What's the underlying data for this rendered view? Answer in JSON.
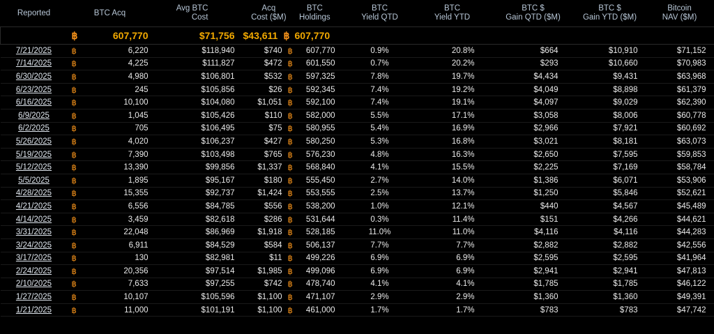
{
  "headers": {
    "reported": "Reported",
    "btc_acq": "BTC Acq",
    "avg_cost_1": "Avg BTC",
    "avg_cost_2": "Cost",
    "acq_cost_1": "Acq",
    "acq_cost_2": "Cost ($M)",
    "holdings_1": "BTC",
    "holdings_2": "Holdings",
    "yield_qtd_1": "BTC",
    "yield_qtd_2": "Yield QTD",
    "yield_ytd_1": "BTC",
    "yield_ytd_2": "Yield YTD",
    "gain_qtd_1": "BTC $",
    "gain_qtd_2": "Gain QTD ($M)",
    "gain_ytd_1": "BTC $",
    "gain_ytd_2": "Gain YTD ($M)",
    "nav_1": "Bitcoin",
    "nav_2": "NAV ($M)"
  },
  "btc_symbol": "฿",
  "summary": {
    "btc_acq": "607,770",
    "avg_cost": "$71,756",
    "acq_cost": "$43,611",
    "holdings": "607,770"
  },
  "rows": [
    {
      "date": "7/21/2025",
      "acq": "6,220",
      "avg": "$118,940",
      "cost": "$740",
      "hold": "607,770",
      "yqtd": "0.9%",
      "yytd": "20.8%",
      "gqtd": "$664",
      "gytd": "$10,910",
      "nav": "$71,152"
    },
    {
      "date": "7/14/2025",
      "acq": "4,225",
      "avg": "$111,827",
      "cost": "$472",
      "hold": "601,550",
      "yqtd": "0.7%",
      "yytd": "20.2%",
      "gqtd": "$293",
      "gytd": "$10,660",
      "nav": "$70,983"
    },
    {
      "date": "6/30/2025",
      "acq": "4,980",
      "avg": "$106,801",
      "cost": "$532",
      "hold": "597,325",
      "yqtd": "7.8%",
      "yytd": "19.7%",
      "gqtd": "$4,434",
      "gytd": "$9,431",
      "nav": "$63,968"
    },
    {
      "date": "6/23/2025",
      "acq": "245",
      "avg": "$105,856",
      "cost": "$26",
      "hold": "592,345",
      "yqtd": "7.4%",
      "yytd": "19.2%",
      "gqtd": "$4,049",
      "gytd": "$8,898",
      "nav": "$61,379"
    },
    {
      "date": "6/16/2025",
      "acq": "10,100",
      "avg": "$104,080",
      "cost": "$1,051",
      "hold": "592,100",
      "yqtd": "7.4%",
      "yytd": "19.1%",
      "gqtd": "$4,097",
      "gytd": "$9,029",
      "nav": "$62,390"
    },
    {
      "date": "6/9/2025",
      "acq": "1,045",
      "avg": "$105,426",
      "cost": "$110",
      "hold": "582,000",
      "yqtd": "5.5%",
      "yytd": "17.1%",
      "gqtd": "$3,058",
      "gytd": "$8,006",
      "nav": "$60,778"
    },
    {
      "date": "6/2/2025",
      "acq": "705",
      "avg": "$106,495",
      "cost": "$75",
      "hold": "580,955",
      "yqtd": "5.4%",
      "yytd": "16.9%",
      "gqtd": "$2,966",
      "gytd": "$7,921",
      "nav": "$60,692"
    },
    {
      "date": "5/26/2025",
      "acq": "4,020",
      "avg": "$106,237",
      "cost": "$427",
      "hold": "580,250",
      "yqtd": "5.3%",
      "yytd": "16.8%",
      "gqtd": "$3,021",
      "gytd": "$8,181",
      "nav": "$63,073"
    },
    {
      "date": "5/19/2025",
      "acq": "7,390",
      "avg": "$103,498",
      "cost": "$765",
      "hold": "576,230",
      "yqtd": "4.8%",
      "yytd": "16.3%",
      "gqtd": "$2,650",
      "gytd": "$7,595",
      "nav": "$59,853"
    },
    {
      "date": "5/12/2025",
      "acq": "13,390",
      "avg": "$99,856",
      "cost": "$1,337",
      "hold": "568,840",
      "yqtd": "4.1%",
      "yytd": "15.5%",
      "gqtd": "$2,225",
      "gytd": "$7,169",
      "nav": "$58,784"
    },
    {
      "date": "5/5/2025",
      "acq": "1,895",
      "avg": "$95,167",
      "cost": "$180",
      "hold": "555,450",
      "yqtd": "2.7%",
      "yytd": "14.0%",
      "gqtd": "$1,386",
      "gytd": "$6,071",
      "nav": "$53,906"
    },
    {
      "date": "4/28/2025",
      "acq": "15,355",
      "avg": "$92,737",
      "cost": "$1,424",
      "hold": "553,555",
      "yqtd": "2.5%",
      "yytd": "13.7%",
      "gqtd": "$1,250",
      "gytd": "$5,846",
      "nav": "$52,621"
    },
    {
      "date": "4/21/2025",
      "acq": "6,556",
      "avg": "$84,785",
      "cost": "$556",
      "hold": "538,200",
      "yqtd": "1.0%",
      "yytd": "12.1%",
      "gqtd": "$440",
      "gytd": "$4,567",
      "nav": "$45,489"
    },
    {
      "date": "4/14/2025",
      "acq": "3,459",
      "avg": "$82,618",
      "cost": "$286",
      "hold": "531,644",
      "yqtd": "0.3%",
      "yytd": "11.4%",
      "gqtd": "$151",
      "gytd": "$4,266",
      "nav": "$44,621"
    },
    {
      "date": "3/31/2025",
      "acq": "22,048",
      "avg": "$86,969",
      "cost": "$1,918",
      "hold": "528,185",
      "yqtd": "11.0%",
      "yytd": "11.0%",
      "gqtd": "$4,116",
      "gytd": "$4,116",
      "nav": "$44,283"
    },
    {
      "date": "3/24/2025",
      "acq": "6,911",
      "avg": "$84,529",
      "cost": "$584",
      "hold": "506,137",
      "yqtd": "7.7%",
      "yytd": "7.7%",
      "gqtd": "$2,882",
      "gytd": "$2,882",
      "nav": "$42,556"
    },
    {
      "date": "3/17/2025",
      "acq": "130",
      "avg": "$82,981",
      "cost": "$11",
      "hold": "499,226",
      "yqtd": "6.9%",
      "yytd": "6.9%",
      "gqtd": "$2,595",
      "gytd": "$2,595",
      "nav": "$41,964"
    },
    {
      "date": "2/24/2025",
      "acq": "20,356",
      "avg": "$97,514",
      "cost": "$1,985",
      "hold": "499,096",
      "yqtd": "6.9%",
      "yytd": "6.9%",
      "gqtd": "$2,941",
      "gytd": "$2,941",
      "nav": "$47,813"
    },
    {
      "date": "2/10/2025",
      "acq": "7,633",
      "avg": "$97,255",
      "cost": "$742",
      "hold": "478,740",
      "yqtd": "4.1%",
      "yytd": "4.1%",
      "gqtd": "$1,785",
      "gytd": "$1,785",
      "nav": "$46,122"
    },
    {
      "date": "1/27/2025",
      "acq": "10,107",
      "avg": "$105,596",
      "cost": "$1,100",
      "hold": "471,107",
      "yqtd": "2.9%",
      "yytd": "2.9%",
      "gqtd": "$1,360",
      "gytd": "$1,360",
      "nav": "$49,391"
    },
    {
      "date": "1/21/2025",
      "acq": "11,000",
      "avg": "$101,191",
      "cost": "$1,100",
      "hold": "461,000",
      "yqtd": "1.7%",
      "yytd": "1.7%",
      "gqtd": "$783",
      "gytd": "$783",
      "nav": "$47,742"
    }
  ]
}
